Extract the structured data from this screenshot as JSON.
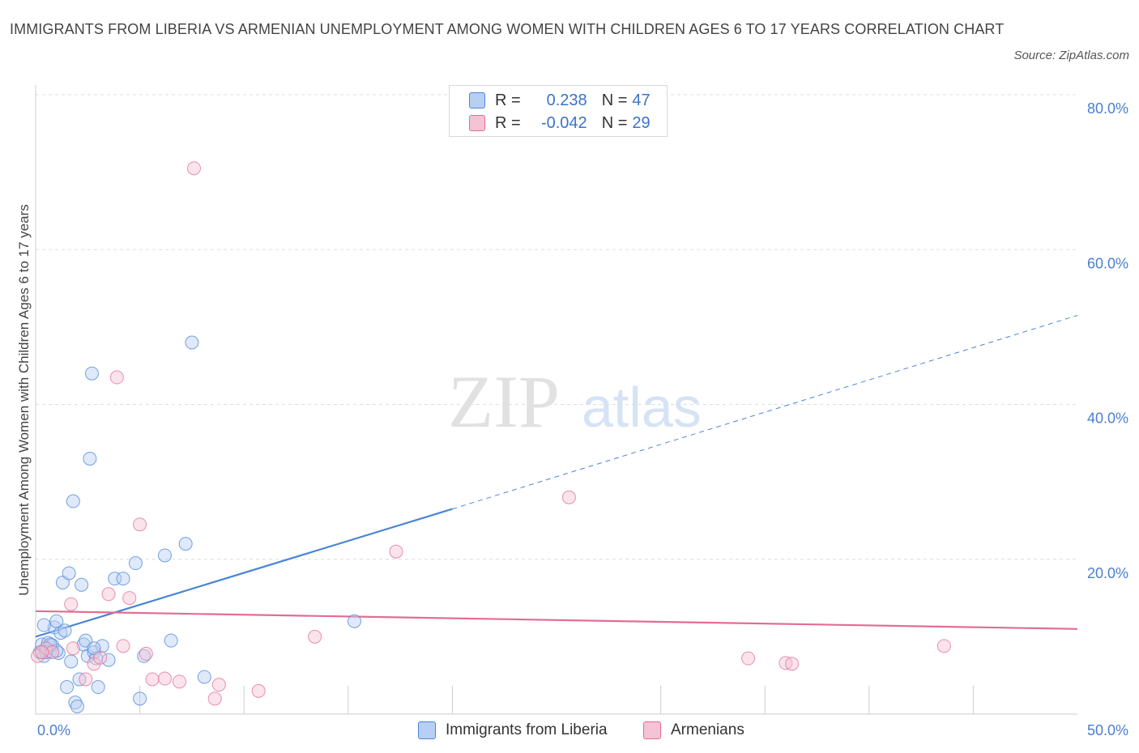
{
  "header": {
    "title": "IMMIGRANTS FROM LIBERIA VS ARMENIAN UNEMPLOYMENT AMONG WOMEN WITH CHILDREN AGES 6 TO 17 YEARS CORRELATION CHART",
    "source": "Source: ZipAtlas.com"
  },
  "legend": {
    "rows": [
      {
        "r_label": "R =",
        "r_value": "0.238",
        "n_label": "N =",
        "n_value": "47"
      },
      {
        "r_label": "R =",
        "r_value": "-0.042",
        "n_label": "N =",
        "n_value": "29"
      }
    ]
  },
  "bottom_legend": [
    "Immigrants from Liberia",
    "Armenians"
  ],
  "colors": {
    "blue": "#4a85d6",
    "blue_fill": "#b7cff3",
    "pink": "#e46c93",
    "pink_fill": "#f5c3d3",
    "axis_text": "#4a7fd0",
    "grid": "#dddddd"
  },
  "chart_data": {
    "type": "scatter",
    "title": "IMMIGRANTS FROM LIBERIA VS ARMENIAN UNEMPLOYMENT AMONG WOMEN WITH CHILDREN AGES 6 TO 17 YEARS CORRELATION CHART",
    "xlabel": "",
    "ylabel": "Unemployment Among Women with Children Ages 6 to 17 years",
    "xlim": [
      0,
      50
    ],
    "ylim": [
      0,
      80
    ],
    "x_tick_labels": [
      "0.0%",
      "50.0%"
    ],
    "y_ticks": [
      20,
      40,
      60,
      80
    ],
    "y_tick_labels": [
      "20.0%",
      "40.0%",
      "60.0%",
      "80.0%"
    ],
    "watermark": {
      "zip": "ZIP",
      "atlas": "atlas"
    },
    "series": [
      {
        "name": "Immigrants from Liberia",
        "color": "#4a85d6",
        "R": 0.238,
        "N": 47,
        "trend": {
          "x0": 0,
          "y0": 10.0,
          "x1": 20,
          "y1": 26.5,
          "dash_x1": 50,
          "dash_y1": 51.5
        },
        "points": [
          [
            0.2,
            8.0
          ],
          [
            0.3,
            9.0
          ],
          [
            0.4,
            7.5
          ],
          [
            0.5,
            8.5
          ],
          [
            0.6,
            9.2
          ],
          [
            0.7,
            8.1
          ],
          [
            0.8,
            8.9
          ],
          [
            0.9,
            11.2
          ],
          [
            1.0,
            12.0
          ],
          [
            1.1,
            7.9
          ],
          [
            1.2,
            10.5
          ],
          [
            1.3,
            17.0
          ],
          [
            1.4,
            10.8
          ],
          [
            1.5,
            3.5
          ],
          [
            1.6,
            18.2
          ],
          [
            1.7,
            6.8
          ],
          [
            1.8,
            27.5
          ],
          [
            1.9,
            1.5
          ],
          [
            2.0,
            1.0
          ],
          [
            2.1,
            4.5
          ],
          [
            2.2,
            16.7
          ],
          [
            2.3,
            9.0
          ],
          [
            2.4,
            9.5
          ],
          [
            2.5,
            7.5
          ],
          [
            2.6,
            33.0
          ],
          [
            2.7,
            44.0
          ],
          [
            2.8,
            8.0
          ],
          [
            2.9,
            7.2
          ],
          [
            3.0,
            3.5
          ],
          [
            3.2,
            8.8
          ],
          [
            3.8,
            17.5
          ],
          [
            4.2,
            17.5
          ],
          [
            4.8,
            19.5
          ],
          [
            5.0,
            2.0
          ],
          [
            5.2,
            7.5
          ],
          [
            6.2,
            20.5
          ],
          [
            6.5,
            9.5
          ],
          [
            7.2,
            22.0
          ],
          [
            7.5,
            48.0
          ],
          [
            8.1,
            4.8
          ],
          [
            15.3,
            12.0
          ],
          [
            0.5,
            8.0
          ],
          [
            1.0,
            8.2
          ],
          [
            2.8,
            8.5
          ],
          [
            0.4,
            11.5
          ],
          [
            0.7,
            9.0
          ],
          [
            3.5,
            7.0
          ]
        ]
      },
      {
        "name": "Armenians",
        "color": "#e46c93",
        "R": -0.042,
        "N": 29,
        "trend": {
          "x0": 0,
          "y0": 13.3,
          "x1": 50,
          "y1": 11.0
        },
        "points": [
          [
            0.1,
            7.5
          ],
          [
            0.5,
            8.5
          ],
          [
            0.8,
            8.0
          ],
          [
            1.7,
            14.2
          ],
          [
            1.8,
            8.5
          ],
          [
            2.4,
            4.5
          ],
          [
            2.8,
            6.5
          ],
          [
            3.1,
            7.3
          ],
          [
            3.5,
            15.5
          ],
          [
            3.9,
            43.5
          ],
          [
            4.2,
            8.8
          ],
          [
            4.5,
            15.0
          ],
          [
            5.0,
            24.5
          ],
          [
            5.3,
            7.8
          ],
          [
            5.6,
            4.5
          ],
          [
            6.2,
            4.6
          ],
          [
            6.9,
            4.2
          ],
          [
            7.6,
            70.5
          ],
          [
            8.6,
            2.0
          ],
          [
            8.8,
            3.8
          ],
          [
            10.7,
            3.0
          ],
          [
            13.4,
            10.0
          ],
          [
            17.3,
            21.0
          ],
          [
            25.6,
            28.0
          ],
          [
            34.2,
            7.2
          ],
          [
            36.0,
            6.6
          ],
          [
            36.3,
            6.5
          ],
          [
            43.6,
            8.8
          ],
          [
            0.3,
            8.0
          ]
        ]
      }
    ]
  }
}
